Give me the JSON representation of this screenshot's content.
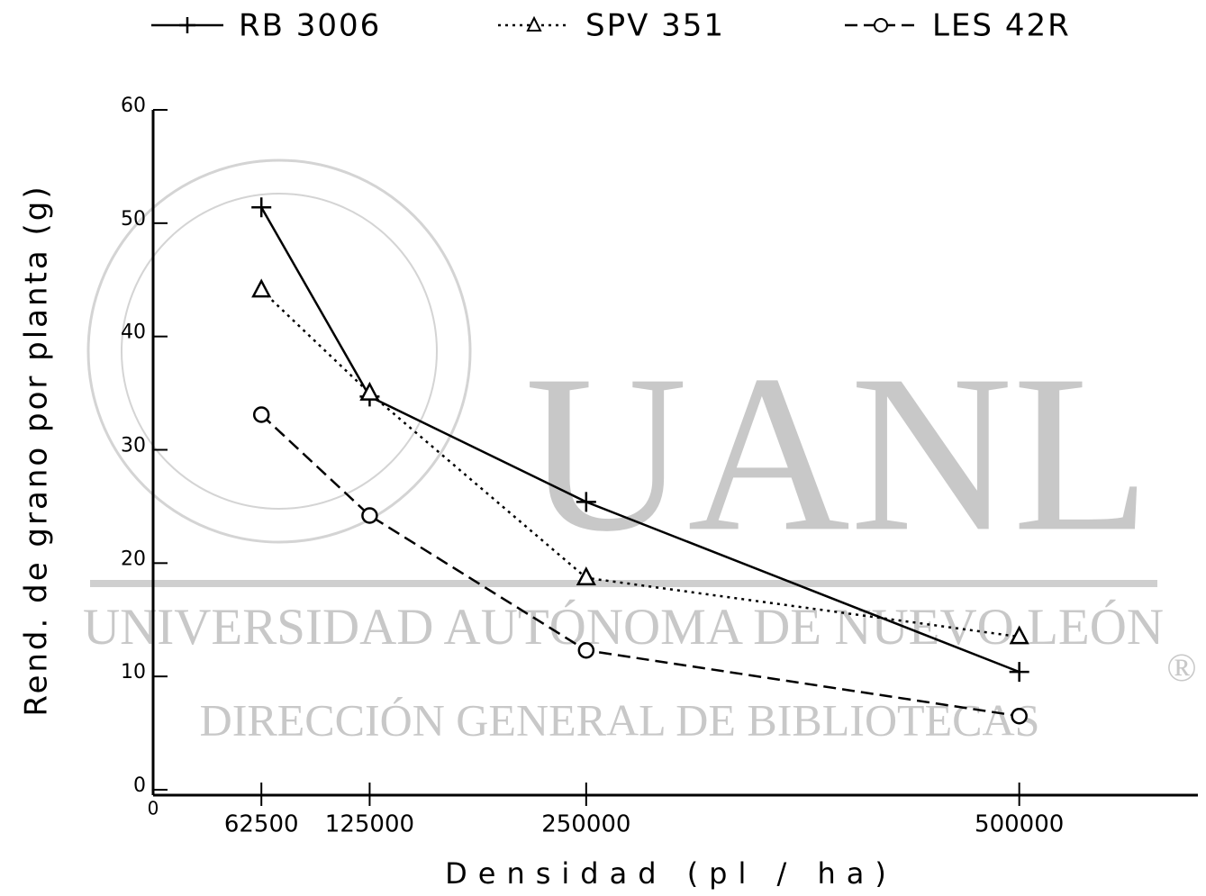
{
  "chart_data": {
    "type": "line",
    "x_label": "Densidad (pl / ha)",
    "y_label": "Rend. de grano por planta (g)",
    "x": [
      62500,
      125000,
      250000,
      500000
    ],
    "series": [
      {
        "name": "RB 3006",
        "color": "#000000",
        "dash": "solid",
        "marker": "plus",
        "values": [
          51.4,
          34.7,
          25.4,
          10.4
        ]
      },
      {
        "name": "SPV 351",
        "color": "#000000",
        "dash": "dotted",
        "marker": "triangle",
        "values": [
          44.1,
          35,
          18.7,
          13.5
        ]
      },
      {
        "name": "LES 42R",
        "color": "#000000",
        "dash": "dashed",
        "marker": "circle",
        "values": [
          33.1,
          24.2,
          12.3,
          6.5
        ]
      }
    ],
    "xlim": [
      0,
      600000
    ],
    "xticks": [
      0,
      62500,
      125000,
      250000,
      500000
    ],
    "ylim": [
      0,
      60
    ],
    "yticks": [
      0,
      10,
      20,
      30,
      40,
      50,
      60
    ],
    "legend": "top",
    "watermark": [
      "UANL",
      "UNIVERSIDAD AUTÓNOMA DE NUEVO LEÓN",
      "DIRECCIÓN GENERAL DE BIBLIOTECAS",
      "®"
    ]
  }
}
